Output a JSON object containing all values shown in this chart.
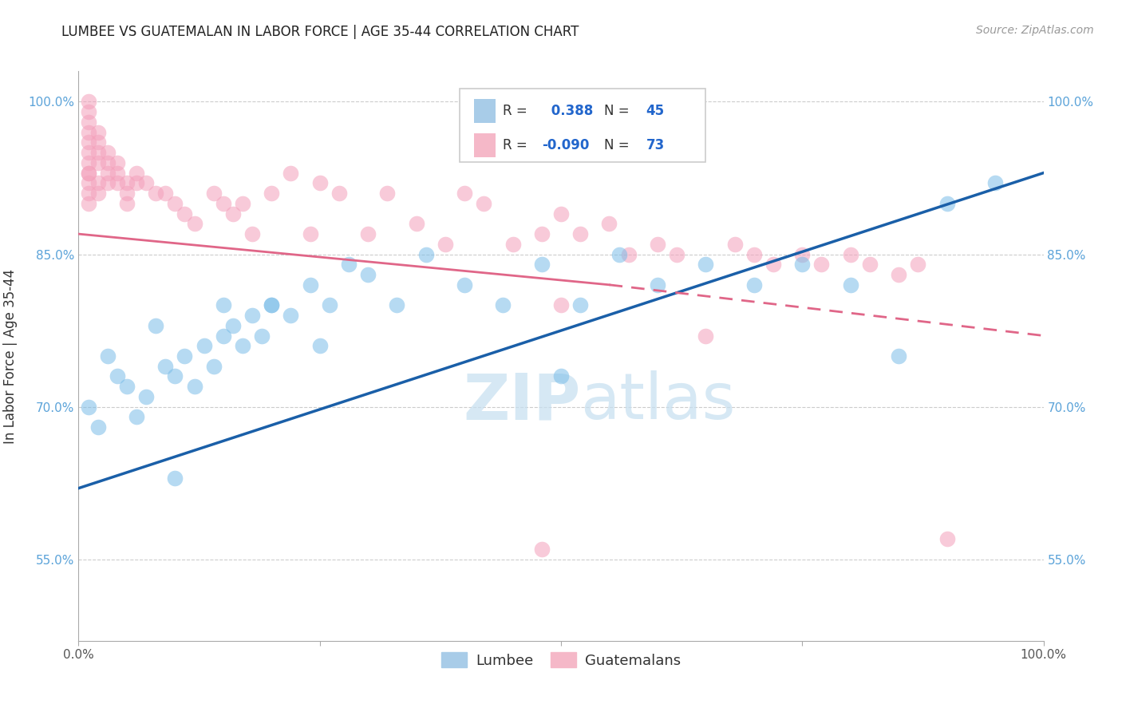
{
  "title": "LUMBEE VS GUATEMALAN IN LABOR FORCE | AGE 35-44 CORRELATION CHART",
  "source": "Source: ZipAtlas.com",
  "ylabel": "In Labor Force | Age 35-44",
  "xlim": [
    0,
    100
  ],
  "ylim": [
    47,
    103
  ],
  "yticks": [
    55.0,
    70.0,
    85.0,
    100.0
  ],
  "ytick_labels": [
    "55.0%",
    "70.0%",
    "85.0%",
    "100.0%"
  ],
  "lumbee_color": "#7abde8",
  "guatemalan_color": "#f4a0bb",
  "lumbee_R": 0.388,
  "lumbee_N": 45,
  "guatemalan_R": -0.09,
  "guatemalan_N": 73,
  "lumbee_line_color": "#1a5fa8",
  "guatemalan_line_color": "#e06688",
  "watermark_zip": "ZIP",
  "watermark_atlas": "atlas",
  "lumbee_x": [
    1,
    2,
    3,
    4,
    5,
    6,
    7,
    8,
    9,
    10,
    11,
    12,
    13,
    14,
    15,
    16,
    17,
    18,
    19,
    20,
    22,
    24,
    26,
    28,
    30,
    33,
    36,
    40,
    44,
    48,
    52,
    56,
    60,
    65,
    70,
    75,
    80,
    85,
    90,
    95,
    10,
    15,
    20,
    25,
    50
  ],
  "lumbee_y": [
    70,
    68,
    75,
    73,
    72,
    69,
    71,
    78,
    74,
    73,
    75,
    72,
    76,
    74,
    80,
    78,
    76,
    79,
    77,
    80,
    79,
    82,
    80,
    84,
    83,
    80,
    85,
    82,
    80,
    84,
    80,
    85,
    82,
    84,
    82,
    84,
    82,
    75,
    90,
    92,
    63,
    77,
    80,
    76,
    73
  ],
  "guatemalan_x": [
    1,
    1,
    1,
    1,
    1,
    1,
    1,
    1,
    1,
    1,
    1,
    1,
    2,
    2,
    2,
    2,
    2,
    2,
    3,
    3,
    3,
    3,
    4,
    4,
    4,
    5,
    5,
    5,
    6,
    6,
    7,
    8,
    9,
    10,
    11,
    12,
    14,
    15,
    16,
    17,
    18,
    20,
    22,
    24,
    25,
    27,
    30,
    32,
    35,
    38,
    40,
    42,
    45,
    48,
    50,
    52,
    55,
    57,
    60,
    62,
    65,
    68,
    70,
    72,
    75,
    77,
    80,
    82,
    85,
    87,
    90,
    50,
    48
  ],
  "guatemalan_y": [
    100,
    99,
    98,
    97,
    96,
    95,
    94,
    93,
    93,
    92,
    91,
    90,
    97,
    96,
    95,
    94,
    92,
    91,
    95,
    94,
    93,
    92,
    94,
    93,
    92,
    92,
    91,
    90,
    93,
    92,
    92,
    91,
    91,
    90,
    89,
    88,
    91,
    90,
    89,
    90,
    87,
    91,
    93,
    87,
    92,
    91,
    87,
    91,
    88,
    86,
    91,
    90,
    86,
    87,
    89,
    87,
    88,
    85,
    86,
    85,
    77,
    86,
    85,
    84,
    85,
    84,
    85,
    84,
    83,
    84,
    57,
    80,
    56
  ]
}
